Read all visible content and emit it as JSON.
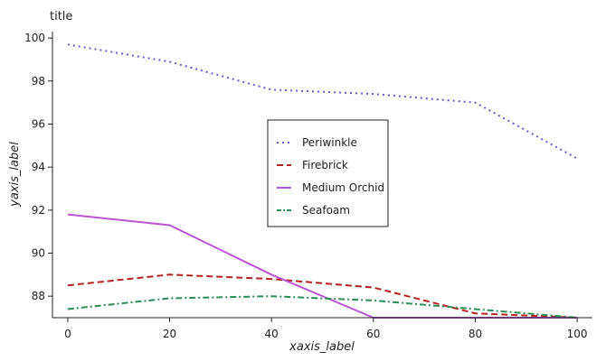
{
  "chart_data": {
    "type": "line",
    "title": "title",
    "xlabel": "xaxis_label",
    "ylabel": "yaxis_label",
    "x": [
      0,
      20,
      40,
      60,
      80,
      100
    ],
    "xlim": [
      -3,
      103
    ],
    "ylim": [
      87.0,
      100.3
    ],
    "yticks": [
      88,
      90,
      92,
      94,
      96,
      98,
      100
    ],
    "grid": false,
    "legend_position": "center",
    "series": [
      {
        "name": "Periwinkle",
        "color": "#6a5acd",
        "dash": "dotted",
        "values": [
          99.7,
          98.9,
          97.6,
          97.4,
          97.0,
          94.4
        ]
      },
      {
        "name": "Firebrick",
        "color": "#b22222",
        "dash": "dashed",
        "values": [
          88.5,
          89.0,
          88.8,
          88.4,
          87.2,
          87.0
        ]
      },
      {
        "name": "Medium Orchid",
        "color": "#ba55d3",
        "dash": "solid",
        "values": [
          91.8,
          91.3,
          89.0,
          87.0,
          87.0,
          87.0
        ]
      },
      {
        "name": "Seafoam",
        "color": "#2e8b57",
        "dash": "dashdot",
        "values": [
          87.4,
          87.9,
          88.0,
          87.8,
          87.4,
          87.0
        ]
      }
    ]
  }
}
